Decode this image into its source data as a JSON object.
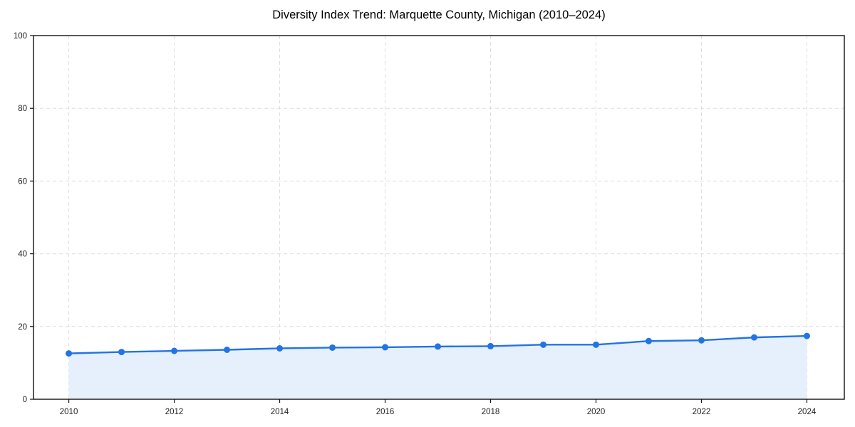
{
  "page": {
    "background": "#ffffff"
  },
  "chart_data": {
    "type": "line",
    "title": "Diversity Index Trend: Marquette County, Michigan (2010–2024)",
    "x": [
      2010,
      2011,
      2012,
      2013,
      2014,
      2015,
      2016,
      2017,
      2018,
      2019,
      2020,
      2021,
      2022,
      2023,
      2024
    ],
    "series": [
      {
        "name": "Diversity Index",
        "values": [
          12.6,
          13.0,
          13.3,
          13.6,
          14.0,
          14.2,
          14.3,
          14.5,
          14.6,
          15.0,
          15.0,
          16.0,
          16.2,
          17.0,
          17.4
        ]
      }
    ],
    "xlabel": "",
    "ylabel": "",
    "xlim": [
      2009.33,
      2024.71
    ],
    "ylim": [
      0,
      100
    ],
    "xticks": [
      2010,
      2012,
      2014,
      2016,
      2018,
      2020,
      2022,
      2024
    ],
    "yticks": [
      0,
      20,
      40,
      60,
      80,
      100
    ],
    "grid": true,
    "grid_style": "dashed",
    "legend": false,
    "area_fill": true,
    "marker": "circle",
    "colors": {
      "line": "#2273e6",
      "marker": "#2273e6",
      "fill": "#e6effc",
      "grid": "#dedede",
      "axis": "#111111",
      "tick_label": "#222222",
      "title": "#000000"
    }
  }
}
